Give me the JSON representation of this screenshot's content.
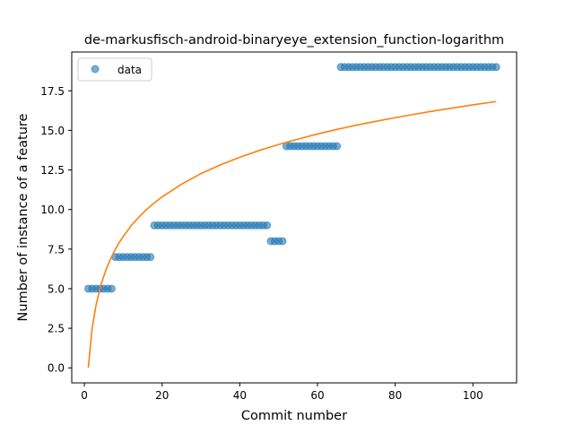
{
  "chart_data": {
    "type": "scatter",
    "title": "de-markusfisch-android-binaryeye_extension_function-logarithm",
    "xlabel": "Commit number",
    "ylabel": "Number of instance of a feature",
    "xlim": [
      -3.25,
      111.25
    ],
    "ylim": [
      -0.95,
      19.95
    ],
    "xticks": [
      0,
      20,
      40,
      60,
      80,
      100
    ],
    "xtick_labels": [
      "0",
      "20",
      "40",
      "60",
      "80",
      "100"
    ],
    "yticks": [
      0,
      2.5,
      5,
      7.5,
      10,
      12.5,
      15,
      17.5
    ],
    "ytick_labels": [
      "0.0",
      "2.5",
      "5.0",
      "7.5",
      "10.0",
      "12.5",
      "15.0",
      "17.5"
    ],
    "grid": false,
    "legend_position": "top-left",
    "legend": [
      "data"
    ],
    "colors": {
      "data": "#1f77b4",
      "fit": "#ff7f0e"
    },
    "series": [
      {
        "name": "data",
        "kind": "points",
        "x": [
          1,
          2,
          3,
          4,
          5,
          6,
          7,
          8,
          9,
          10,
          11,
          12,
          13,
          14,
          15,
          16,
          17,
          18,
          19,
          20,
          21,
          22,
          23,
          24,
          25,
          26,
          27,
          28,
          29,
          30,
          31,
          32,
          33,
          34,
          35,
          36,
          37,
          38,
          39,
          40,
          41,
          42,
          43,
          44,
          45,
          46,
          47,
          48,
          49,
          50,
          51,
          52,
          53,
          54,
          55,
          56,
          57,
          58,
          59,
          60,
          61,
          62,
          63,
          64,
          65,
          66,
          67,
          68,
          69,
          70,
          71,
          72,
          73,
          74,
          75,
          76,
          77,
          78,
          79,
          80,
          81,
          82,
          83,
          84,
          85,
          86,
          87,
          88,
          89,
          90,
          91,
          92,
          93,
          94,
          95,
          96,
          97,
          98,
          99,
          100,
          101,
          102,
          103,
          104,
          105,
          106
        ],
        "y": [
          5,
          5,
          5,
          5,
          5,
          5,
          5,
          7,
          7,
          7,
          7,
          7,
          7,
          7,
          7,
          7,
          7,
          9,
          9,
          9,
          9,
          9,
          9,
          9,
          9,
          9,
          9,
          9,
          9,
          9,
          9,
          9,
          9,
          9,
          9,
          9,
          9,
          9,
          9,
          9,
          9,
          9,
          9,
          9,
          9,
          9,
          9,
          8,
          8,
          8,
          8,
          14,
          14,
          14,
          14,
          14,
          14,
          14,
          14,
          14,
          14,
          14,
          14,
          14,
          14,
          19,
          19,
          19,
          19,
          19,
          19,
          19,
          19,
          19,
          19,
          19,
          19,
          19,
          19,
          19,
          19,
          19,
          19,
          19,
          19,
          19,
          19,
          19,
          19,
          19,
          19,
          19,
          19,
          19,
          19,
          19,
          19,
          19,
          19,
          19,
          19,
          19,
          19,
          19,
          19,
          19
        ]
      },
      {
        "kind": "fit-line",
        "x": [
          1,
          2,
          3,
          4,
          5,
          6,
          7,
          8,
          9,
          10,
          12,
          14,
          16,
          18,
          20,
          25,
          30,
          35,
          40,
          45,
          50,
          55,
          60,
          65,
          70,
          75,
          80,
          85,
          90,
          95,
          100,
          106
        ],
        "y": [
          0,
          2.5,
          3.96,
          5.0,
          5.8,
          6.46,
          7.02,
          7.5,
          7.92,
          8.3,
          8.96,
          9.52,
          10.0,
          10.42,
          10.8,
          11.6,
          12.27,
          12.82,
          13.3,
          13.73,
          14.11,
          14.45,
          14.77,
          15.06,
          15.33,
          15.57,
          15.8,
          16.02,
          16.23,
          16.42,
          16.61,
          16.82
        ]
      }
    ]
  }
}
